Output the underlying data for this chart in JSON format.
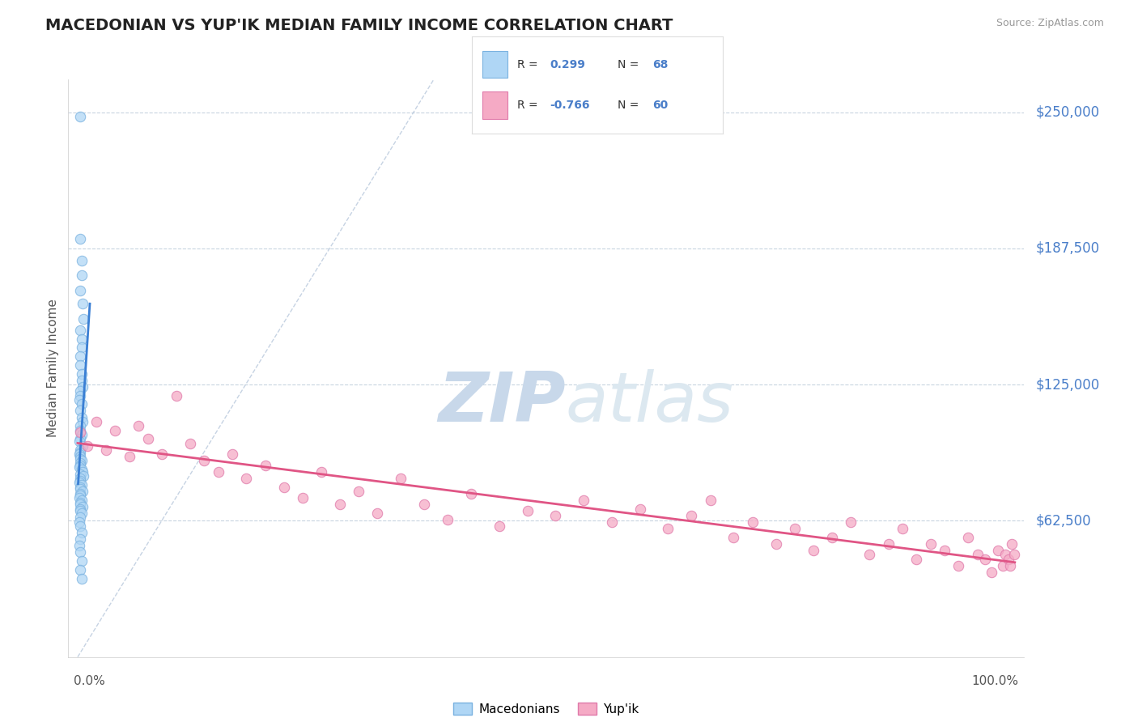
{
  "title": "MACEDONIAN VS YUP'IK MEDIAN FAMILY INCOME CORRELATION CHART",
  "source": "Source: ZipAtlas.com",
  "ylabel": "Median Family Income",
  "ymin": 0,
  "ymax": 265000,
  "xmin": -0.01,
  "xmax": 1.01,
  "macedonian_R": 0.299,
  "macedonian_N": 68,
  "yupik_R": -0.766,
  "yupik_N": 60,
  "macedonian_color": "#afd6f5",
  "macedonian_edge": "#7ab2e0",
  "yupik_color": "#f5aac5",
  "yupik_edge": "#e07aaa",
  "trend_blue": "#3a7fd4",
  "trend_pink": "#e05585",
  "ytick_color": "#4a7ec9",
  "diagonal_color": "#b8c8dc",
  "watermark_color": "#c8d8ea",
  "background": "#ffffff",
  "macedonian_x": [
    0.003,
    0.003,
    0.004,
    0.004,
    0.003,
    0.005,
    0.006,
    0.003,
    0.004,
    0.004,
    0.003,
    0.003,
    0.004,
    0.004,
    0.005,
    0.003,
    0.003,
    0.002,
    0.004,
    0.003,
    0.004,
    0.005,
    0.003,
    0.003,
    0.004,
    0.003,
    0.002,
    0.005,
    0.003,
    0.003,
    0.002,
    0.003,
    0.003,
    0.004,
    0.003,
    0.003,
    0.002,
    0.004,
    0.005,
    0.003,
    0.006,
    0.003,
    0.003,
    0.002,
    0.004,
    0.003,
    0.003,
    0.005,
    0.003,
    0.003,
    0.002,
    0.004,
    0.003,
    0.003,
    0.005,
    0.003,
    0.003,
    0.004,
    0.003,
    0.002,
    0.003,
    0.004,
    0.003,
    0.002,
    0.003,
    0.004,
    0.003,
    0.004
  ],
  "macedonian_y": [
    248000,
    192000,
    182000,
    175000,
    168000,
    162000,
    155000,
    150000,
    146000,
    142000,
    138000,
    134000,
    130000,
    127000,
    124000,
    122000,
    120000,
    118000,
    116000,
    113000,
    110000,
    108000,
    106000,
    104000,
    102000,
    100000,
    99000,
    97000,
    95000,
    94000,
    93000,
    92000,
    91000,
    90000,
    89000,
    88000,
    87000,
    86000,
    85000,
    84000,
    83000,
    82000,
    81000,
    80000,
    79000,
    78000,
    77000,
    76000,
    75000,
    74000,
    73000,
    72000,
    71000,
    70000,
    69000,
    68000,
    67000,
    66000,
    64000,
    62000,
    60000,
    57000,
    54000,
    51000,
    48000,
    44000,
    40000,
    36000
  ],
  "yupik_x": [
    0.003,
    0.01,
    0.02,
    0.03,
    0.04,
    0.055,
    0.065,
    0.075,
    0.09,
    0.105,
    0.12,
    0.135,
    0.15,
    0.165,
    0.18,
    0.2,
    0.22,
    0.24,
    0.26,
    0.28,
    0.3,
    0.32,
    0.345,
    0.37,
    0.395,
    0.42,
    0.45,
    0.48,
    0.51,
    0.54,
    0.57,
    0.6,
    0.63,
    0.655,
    0.675,
    0.7,
    0.72,
    0.745,
    0.765,
    0.785,
    0.805,
    0.825,
    0.845,
    0.865,
    0.88,
    0.895,
    0.91,
    0.925,
    0.94,
    0.95,
    0.96,
    0.968,
    0.975,
    0.982,
    0.987,
    0.99,
    0.993,
    0.995,
    0.997,
    0.999
  ],
  "yupik_y": [
    103000,
    97000,
    108000,
    95000,
    104000,
    92000,
    106000,
    100000,
    93000,
    120000,
    98000,
    90000,
    85000,
    93000,
    82000,
    88000,
    78000,
    73000,
    85000,
    70000,
    76000,
    66000,
    82000,
    70000,
    63000,
    75000,
    60000,
    67000,
    65000,
    72000,
    62000,
    68000,
    59000,
    65000,
    72000,
    55000,
    62000,
    52000,
    59000,
    49000,
    55000,
    62000,
    47000,
    52000,
    59000,
    45000,
    52000,
    49000,
    42000,
    55000,
    47000,
    45000,
    39000,
    49000,
    42000,
    47000,
    45000,
    42000,
    52000,
    47000
  ]
}
